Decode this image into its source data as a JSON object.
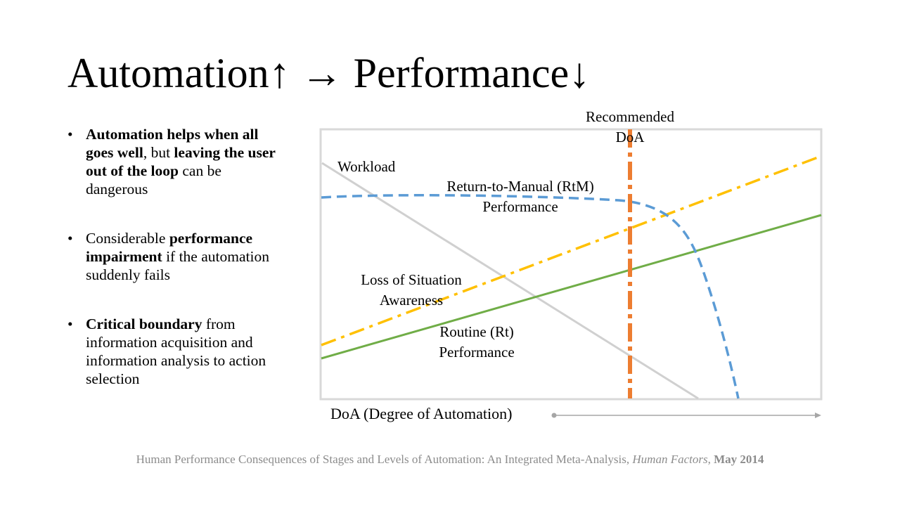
{
  "slide": {
    "title": "Automation↑ → Performance↓",
    "bullets": [
      {
        "dot": "•",
        "segments": [
          {
            "text": "Automation helps when all goes well",
            "bold": true
          },
          {
            "text": ", but ",
            "bold": false
          },
          {
            "text": "leaving the user out of the loop",
            "bold": true
          },
          {
            "text": " can be dangerous",
            "bold": false
          }
        ]
      },
      {
        "dot": "•",
        "segments": [
          {
            "text": "Considerable ",
            "bold": false
          },
          {
            "text": "performance impairment",
            "bold": true
          },
          {
            "text": " if the automation suddenly fails",
            "bold": false
          }
        ]
      },
      {
        "dot": "•",
        "segments": [
          {
            "text": "Critical boundary",
            "bold": true
          },
          {
            "text": " from information acquisition and information analysis to action selection",
            "bold": false
          }
        ]
      }
    ]
  },
  "diagram": {
    "labels": {
      "recommended": [
        "Recommended",
        "DoA"
      ],
      "workload": "Workload",
      "rtm": [
        "Return-to-Manual (RtM)",
        "Performance"
      ],
      "loss_sa": [
        "Loss of Situation",
        "Awareness"
      ],
      "routine": [
        "Routine (Rt)",
        "Performance"
      ]
    },
    "x_axis_label": "DoA (Degree of Automation)",
    "colors": {
      "frame": "#d9d9d9",
      "workload": "#d0d0d0",
      "rtm": "#5b9bd5",
      "loss_sa": "#ffc000",
      "routine": "#70ad47",
      "recommended": "#ed7d31",
      "axis": "#a6a6a6"
    }
  },
  "citation": {
    "text": "Human Performance Consequences of Stages and Levels of Automation: An Integrated Meta-Analysis, ",
    "journal": "Human Factors",
    "sep": ", ",
    "date": "May 2014"
  }
}
